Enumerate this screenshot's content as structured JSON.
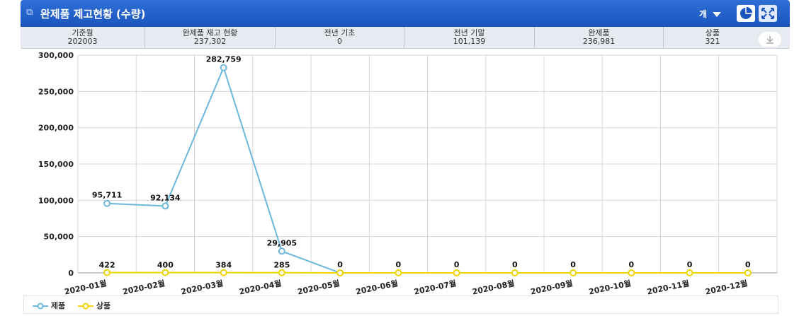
{
  "header": {
    "title": "완제품 제고현황 (수량)",
    "unit_label": "개",
    "title_icon": "window-icon",
    "buttons": [
      "pie-chart-icon",
      "expand-icon"
    ]
  },
  "summary": [
    {
      "label": "기준월",
      "value": "202003"
    },
    {
      "label": "완제품 재고 현황",
      "value": "237,302"
    },
    {
      "label": "전년 기초",
      "value": "0"
    },
    {
      "label": "전년 기말",
      "value": "101,139"
    },
    {
      "label": "완제품",
      "value": "236,981"
    },
    {
      "label": "상품",
      "value": "321"
    }
  ],
  "colors": {
    "series1": "#6cb8dc",
    "series2": "#f2d200",
    "header": "#2160c8"
  },
  "chart_data": {
    "type": "line",
    "categories": [
      "2020-01월",
      "2020-02월",
      "2020-03월",
      "2020-04월",
      "2020-05월",
      "2020-06월",
      "2020-07월",
      "2020-08월",
      "2020-09월",
      "2020-10월",
      "2020-11월",
      "2020-12월"
    ],
    "ylim": [
      0,
      300000
    ],
    "yticks": [
      "0",
      "50,000",
      "100,000",
      "150,000",
      "200,000",
      "250,000",
      "300,000"
    ],
    "ytick_values": [
      0,
      50000,
      100000,
      150000,
      200000,
      250000,
      300000
    ],
    "grid": true,
    "legend_position": "bottom-left",
    "series": [
      {
        "name": "제품",
        "values": [
          95711,
          92134,
          282759,
          29905,
          0,
          null,
          null,
          null,
          null,
          null,
          null,
          null
        ],
        "labels": [
          "95,711",
          "92,134",
          "282,759",
          "29,905",
          "0",
          "0",
          "0",
          "0",
          "0",
          "0",
          "0",
          "0"
        ]
      },
      {
        "name": "상품",
        "values": [
          422,
          400,
          384,
          285,
          0,
          0,
          0,
          0,
          0,
          0,
          0,
          0
        ],
        "labels": [
          "422",
          "400",
          "384",
          "285",
          "",
          "",
          "",
          "",
          "",
          "",
          "",
          ""
        ]
      }
    ]
  }
}
